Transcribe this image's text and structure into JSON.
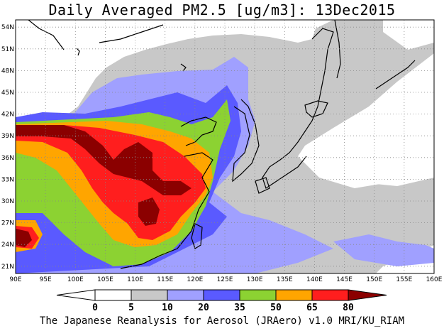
{
  "title": "Daily Averaged PM2.5 [ug/m3]: 13Dec2015",
  "footer": "The Japanese Reanalysis for Aerosol (JRAero) v1.0 MRI/KU_RIAM",
  "map": {
    "lon_range": [
      90,
      160
    ],
    "lat_range": [
      20,
      55
    ],
    "lon_ticks": [
      "90E",
      "95E",
      "100E",
      "105E",
      "110E",
      "115E",
      "120E",
      "125E",
      "130E",
      "135E",
      "140E",
      "145E",
      "150E",
      "155E",
      "160E"
    ],
    "lat_ticks": [
      "21N",
      "24N",
      "27N",
      "30N",
      "33N",
      "36N",
      "39N",
      "42N",
      "45N",
      "48N",
      "51N",
      "54N"
    ]
  },
  "legend": {
    "levels": [
      "0",
      "5",
      "10",
      "20",
      "35",
      "50",
      "65",
      "80"
    ],
    "colors": [
      "#ffffff",
      "#c8c8c8",
      "#a0a0ff",
      "#5a5aff",
      "#8cd232",
      "#ffa500",
      "#ff1e1e",
      "#8b0000"
    ]
  }
}
